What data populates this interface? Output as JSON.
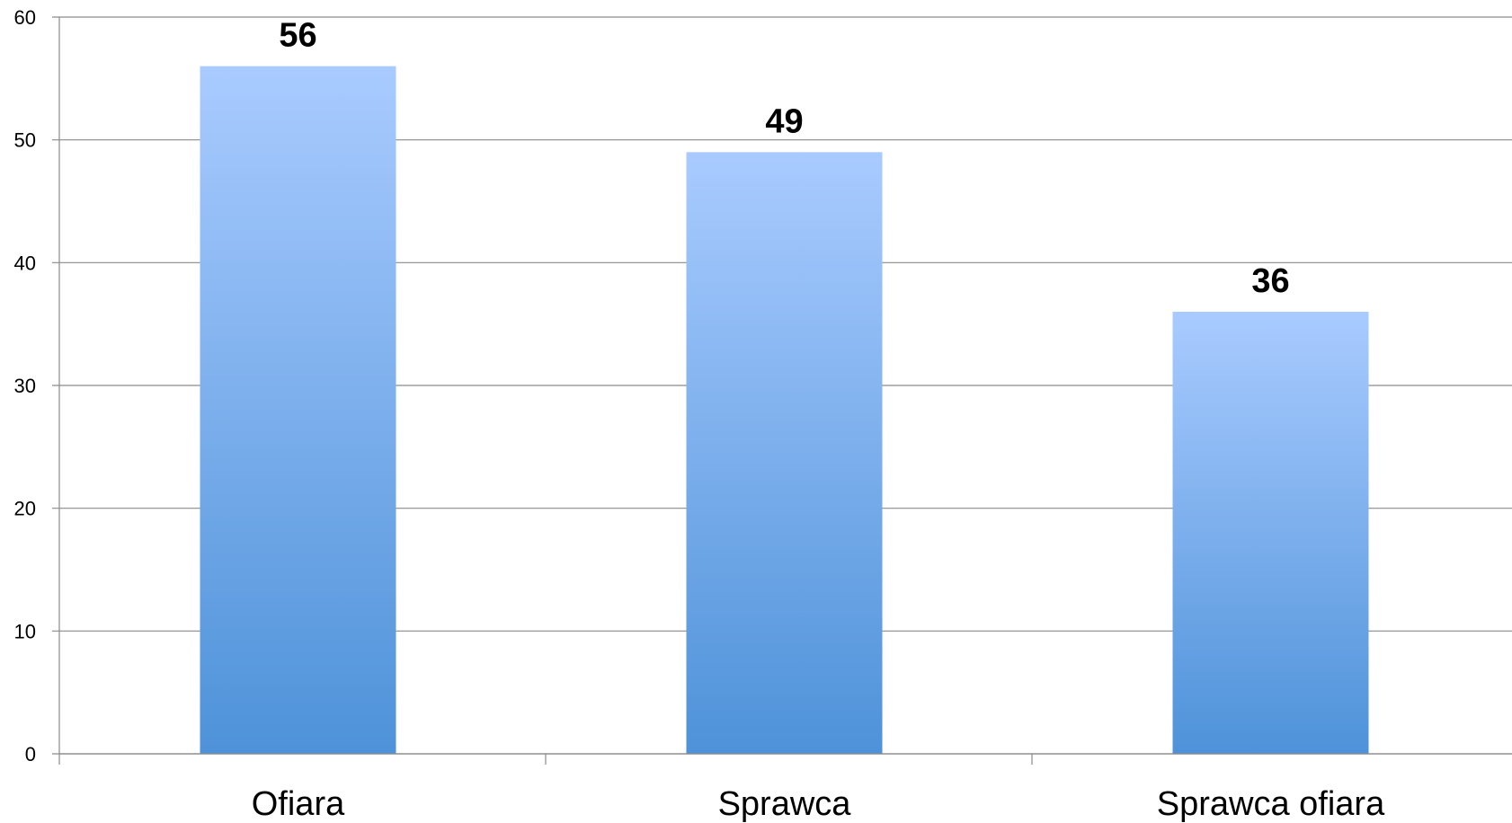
{
  "chart_data": {
    "type": "bar",
    "categories": [
      "Ofiara",
      "Sprawca",
      "Sprawca ofiara"
    ],
    "values": [
      56,
      49,
      36
    ],
    "title": "",
    "xlabel": "",
    "ylabel": "",
    "ylim": [
      0,
      60
    ],
    "yticks": [
      0,
      10,
      20,
      30,
      40,
      50,
      60
    ],
    "grid": true,
    "legend": "none",
    "data_labels": true
  },
  "colors": {
    "bar_top": "#a9cbff",
    "bar_bottom": "#4e92d9",
    "grid": "#8a8a8a",
    "axis": "#8a8a8a"
  }
}
